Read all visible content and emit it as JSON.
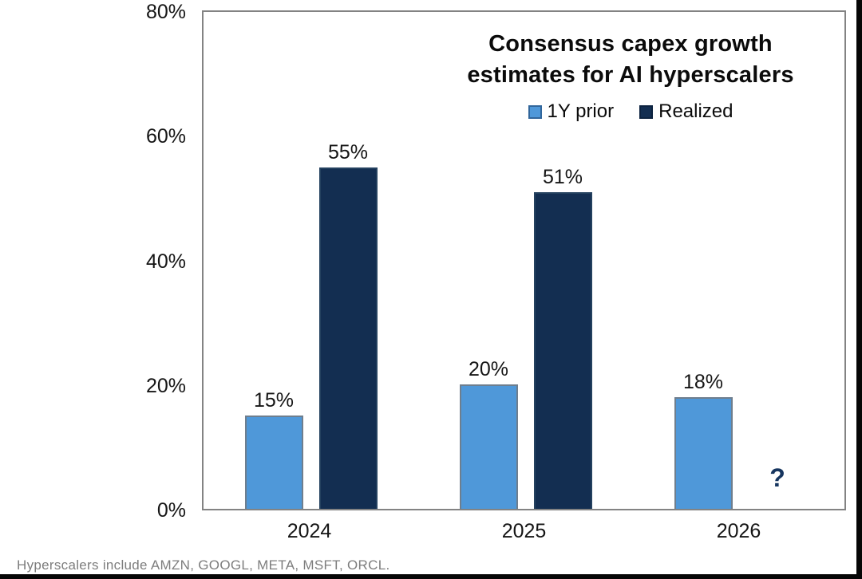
{
  "header": {
    "title_lines": [
      "Consensus capex growth",
      "estimates for AI hyperscalers"
    ]
  },
  "legend": {
    "items": [
      {
        "label": "1Y prior",
        "color": "#4f98d9"
      },
      {
        "label": "Realized",
        "color": "#132e51"
      }
    ]
  },
  "footer": {
    "note": "Hyperscalers include AMZN, GOOGL, META, MSFT, ORCL."
  },
  "chart_data": {
    "type": "bar",
    "title": "Consensus capex growth estimates for AI hyperscalers",
    "categories": [
      "2024",
      "2025",
      "2026"
    ],
    "series": [
      {
        "name": "1Y prior",
        "color": "#4f98d9",
        "values": [
          15,
          20,
          18
        ],
        "labels": [
          "15%",
          "20%",
          "18%"
        ]
      },
      {
        "name": "Realized",
        "color": "#132e51",
        "values": [
          55,
          51,
          null
        ],
        "labels": [
          "55%",
          "51%",
          "?"
        ]
      }
    ],
    "unknown_marker": {
      "category": "2026",
      "series": "Realized",
      "symbol": "?"
    },
    "xlabel": "",
    "ylabel": "",
    "ylim": [
      0,
      80
    ],
    "yticks": [
      "80%",
      "60%",
      "40%",
      "20%",
      "0%"
    ],
    "grid": false,
    "legend_position": "top-right",
    "footnote": "Hyperscalers include AMZN, GOOGL, META, MSFT, ORCL."
  }
}
